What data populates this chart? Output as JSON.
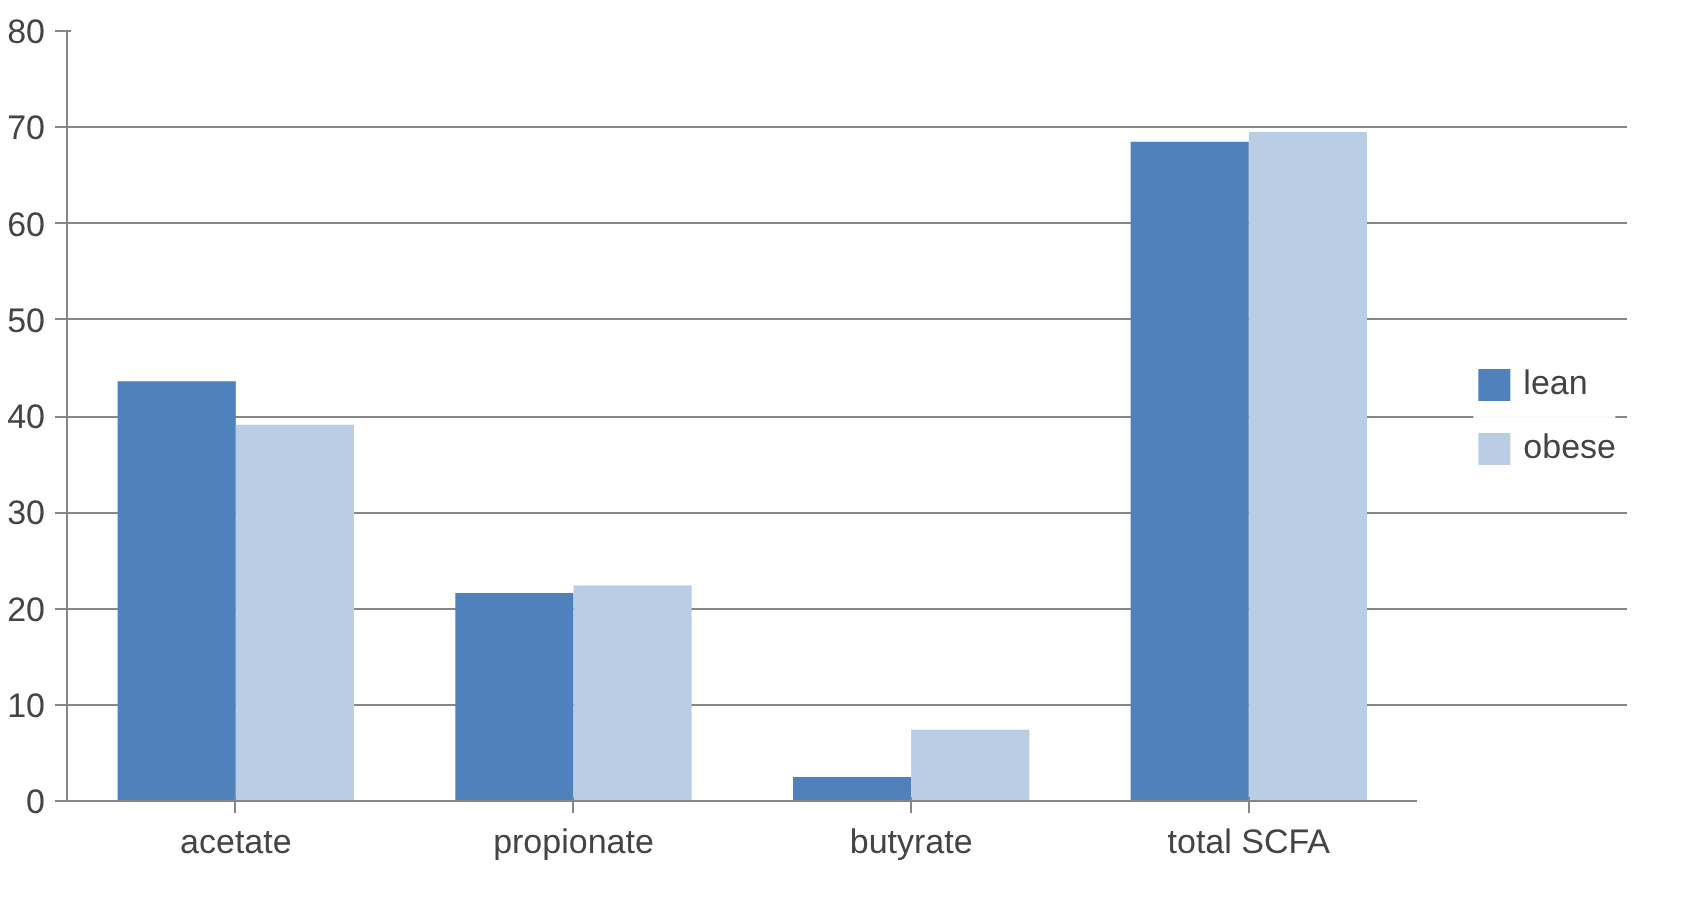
{
  "chart_data": {
    "type": "bar",
    "categories": [
      "acetate",
      "propionate",
      "butyrate",
      "total SCFA"
    ],
    "series": [
      {
        "name": "lean",
        "color": "#4f81bd",
        "values": [
          43.6,
          21.6,
          2.5,
          68.5
        ]
      },
      {
        "name": "obese",
        "color": "#b9cde5",
        "values": [
          39.1,
          22.4,
          7.4,
          69.5
        ]
      }
    ],
    "ylim": [
      0,
      80
    ],
    "yticks": [
      0,
      10,
      20,
      30,
      40,
      50,
      60,
      70,
      80
    ],
    "grid": "y",
    "legend": "right"
  }
}
